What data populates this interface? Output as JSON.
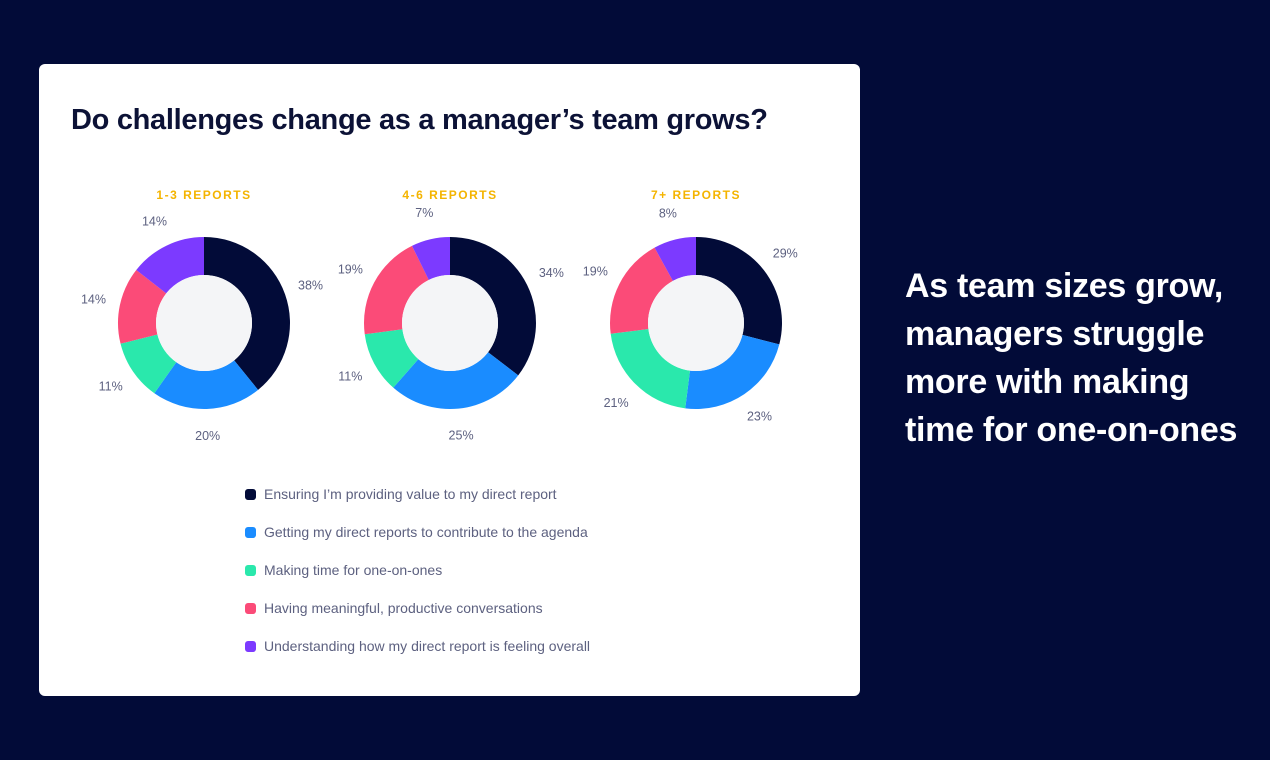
{
  "card": {
    "title": "Do challenges change as a manager’s team grows?"
  },
  "headline": "As team sizes grow, managers struggle more with making time for one-on-ones",
  "chart_data": {
    "type": "pie",
    "variant": "donut",
    "categories": [
      "Ensuring I’m providing value to my direct report",
      "Getting my direct reports to contribute to the agenda",
      "Making time for one-on-ones",
      "Having meaningful, productive conversations",
      "Understanding how my direct report is feeling overall"
    ],
    "colors": [
      "#020b38",
      "#1a8cff",
      "#2ae8ac",
      "#fb4b78",
      "#7c3aff"
    ],
    "center_color": "#f4f5f7",
    "legend_position": "bottom",
    "groups": [
      {
        "label": "1-3 REPORTS",
        "values": [
          38,
          20,
          11,
          14,
          14
        ]
      },
      {
        "label": "4-6 REPORTS",
        "values": [
          34,
          25,
          11,
          19,
          7
        ]
      },
      {
        "label": "7+ REPORTS",
        "values": [
          29,
          23,
          21,
          19,
          8
        ]
      }
    ],
    "value_suffix": "%"
  }
}
